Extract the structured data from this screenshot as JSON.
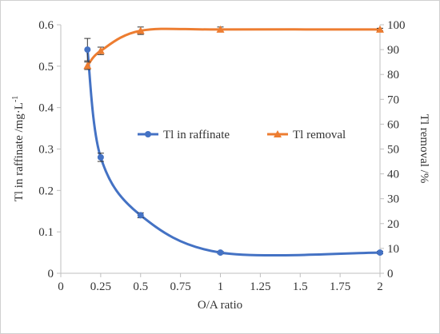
{
  "chart_data": {
    "type": "line",
    "xlabel": "O/A ratio",
    "ylabel_left": "Tl in raffinate /mg·L",
    "ylabel_left_sup": "-1",
    "ylabel_right": "Tl removal /%",
    "xlim": [
      0,
      2
    ],
    "ylim_left": [
      0,
      0.6
    ],
    "ylim_right": [
      0,
      100
    ],
    "x_ticks": [
      "0",
      "0.25",
      "0.5",
      "0.75",
      "1",
      "1.25",
      "1.5",
      "1.75",
      "2"
    ],
    "y_left_ticks": [
      "0",
      "0.1",
      "0.2",
      "0.3",
      "0.4",
      "0.5",
      "0.6"
    ],
    "y_right_ticks": [
      "0",
      "10",
      "20",
      "30",
      "40",
      "50",
      "60",
      "70",
      "80",
      "90",
      "100"
    ],
    "legend_placement": "center",
    "grid": false,
    "series": [
      {
        "name": "Tl in raffinate",
        "axis": "left",
        "color": "#4472C4",
        "marker": "circle",
        "x": [
          0.167,
          0.25,
          0.5,
          1,
          2
        ],
        "y": [
          0.54,
          0.28,
          0.14,
          0.05,
          0.05
        ],
        "error": [
          0.027,
          0.01,
          0.006,
          0.003,
          0.003
        ]
      },
      {
        "name": "Tl removal",
        "axis": "right",
        "color": "#ED7D31",
        "marker": "triangle",
        "x": [
          0.167,
          0.25,
          0.5,
          1,
          2
        ],
        "y": [
          83.5,
          89.5,
          97.6,
          98.1,
          98.1
        ],
        "error": [
          1.5,
          1.5,
          1.5,
          1.0,
          0.5
        ]
      }
    ]
  }
}
